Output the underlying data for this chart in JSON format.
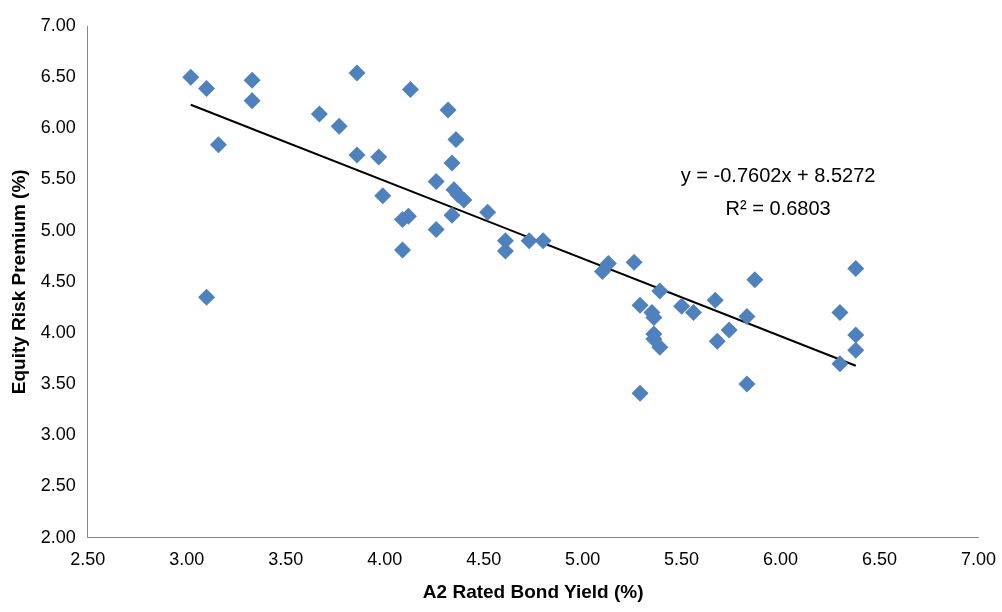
{
  "chart_data": {
    "type": "scatter",
    "xlabel": "A2 Rated Bond Yield (%)",
    "ylabel": "Equity Risk Premium (%)",
    "xlim": [
      2.5,
      7
    ],
    "xticks": [
      {
        "value": 2.5,
        "label": "2.50"
      },
      {
        "value": 3,
        "label": "3.00"
      },
      {
        "value": 3.5,
        "label": "3.50"
      },
      {
        "value": 4,
        "label": "4.00"
      },
      {
        "value": 4.5,
        "label": "4.50"
      },
      {
        "value": 5,
        "label": "5.00"
      },
      {
        "value": 5.5,
        "label": "5.50"
      },
      {
        "value": 6,
        "label": "6.00"
      },
      {
        "value": 6.5,
        "label": "6.50"
      },
      {
        "value": 7,
        "label": "7.00"
      }
    ],
    "ylim": [
      2,
      7
    ],
    "yticks": [
      {
        "value": 2,
        "label": "2.00"
      },
      {
        "value": 2.5,
        "label": "2.50"
      },
      {
        "value": 3,
        "label": "3.00"
      },
      {
        "value": 3.5,
        "label": "3.50"
      },
      {
        "value": 4,
        "label": "4.00"
      },
      {
        "value": 4.5,
        "label": "4.50"
      },
      {
        "value": 5,
        "label": "5.00"
      },
      {
        "value": 5.5,
        "label": "5.50"
      },
      {
        "value": 6,
        "label": "6.00"
      },
      {
        "value": 6.5,
        "label": "6.50"
      },
      {
        "value": 7,
        "label": "7.00"
      }
    ],
    "grid": false,
    "legend": false,
    "marker": "diamond",
    "series": [
      {
        "type": "scatter",
        "color": "#4f81bd",
        "x": [
          3.02,
          3.1,
          3.33,
          3.33,
          3.16,
          3.1,
          3.86,
          3.67,
          3.77,
          3.86,
          3.97,
          3.99,
          4.13,
          4.32,
          4.36,
          4.34,
          4.26,
          4.35,
          4.37,
          4.4,
          4.12,
          4.09,
          4.34,
          4.52,
          4.26,
          4.09,
          4.61,
          4.61,
          4.73,
          4.8,
          5.1,
          5.13,
          5.26,
          5.29,
          5.35,
          5.36,
          5.36,
          5.36,
          5.39,
          5.39,
          5.5,
          5.56,
          5.67,
          5.68,
          5.74,
          5.83,
          5.87,
          5.83,
          5.29,
          6.3,
          6.3,
          6.38,
          6.38,
          6.38
        ],
        "values": [
          6.5,
          6.39,
          6.47,
          6.27,
          5.84,
          4.35,
          6.54,
          6.14,
          6.02,
          5.74,
          5.72,
          5.34,
          6.38,
          6.18,
          5.89,
          5.66,
          5.48,
          5.4,
          5.35,
          5.3,
          5.14,
          5.11,
          5.15,
          5.18,
          5.01,
          4.81,
          4.9,
          4.8,
          4.9,
          4.9,
          4.6,
          4.68,
          4.69,
          4.27,
          4.2,
          4.15,
          3.99,
          3.94,
          3.86,
          4.41,
          4.26,
          4.2,
          4.32,
          3.92,
          4.03,
          4.16,
          4.52,
          3.5,
          3.41,
          4.2,
          3.7,
          4.63,
          3.98,
          3.83
        ]
      },
      {
        "type": "line",
        "color": "#000000",
        "x": [
          3.02,
          6.38
        ],
        "values": [
          6.23,
          3.68
        ],
        "marker": "none"
      }
    ],
    "annotations": [
      "y = -0.7602x + 8.5272",
      "R² = 0.6803"
    ]
  }
}
